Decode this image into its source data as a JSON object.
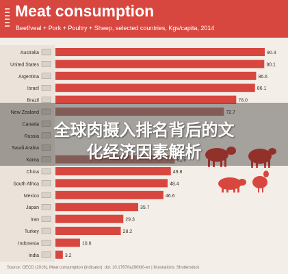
{
  "header": {
    "title": "Meat consumption",
    "subtitle": "Beef/veal + Pork + Poultry + Sheep, selected countries, Kgs/capita, 2014"
  },
  "overlay": {
    "line1": "全球肉摄入排名背后的文",
    "line2": "化经济因素解析"
  },
  "footer": {
    "source": "Source: OECD (2016), Meat consumption (indicator). doi: 10.1787/fa290fd0-en | Illustrations: Shutterstock"
  },
  "colors": {
    "header": "#d8473f",
    "bar": "#d8473f",
    "bar_muted": "#c08a82",
    "background": "#f4eee8",
    "label_bg": "#ebe2d9"
  },
  "icons": [
    "bars-icon",
    "flag-icons",
    "cow-icon",
    "sheep-icon",
    "pig-icon",
    "chicken-icon"
  ],
  "chart_data": {
    "type": "bar",
    "orientation": "horizontal",
    "categories": [
      "Australia",
      "United States",
      "Argentina",
      "Israel",
      "Brazil",
      "New Zealand",
      "Canada",
      "Russia",
      "Saudi Arabia",
      "Korea",
      "China",
      "South Africa",
      "Mexico",
      "Japan",
      "Iran",
      "Turkey",
      "Indonesia",
      "India"
    ],
    "values": [
      90.3,
      90.1,
      86.6,
      86.1,
      78.0,
      72.7,
      null,
      null,
      null,
      51.5,
      49.8,
      48.4,
      46.6,
      35.7,
      29.3,
      28.2,
      10.6,
      3.2
    ],
    "value_labels": [
      "90.3",
      "90.1",
      "86.6",
      "86.1",
      "78.0",
      "72.7",
      "",
      "",
      "",
      "51.5",
      "49.8",
      "48.4",
      "46.6",
      "35.7",
      "29.3",
      "28.2",
      "10.6",
      "3.2"
    ],
    "xlim": [
      0,
      90.3
    ],
    "ylabel": "",
    "xlabel": ""
  }
}
